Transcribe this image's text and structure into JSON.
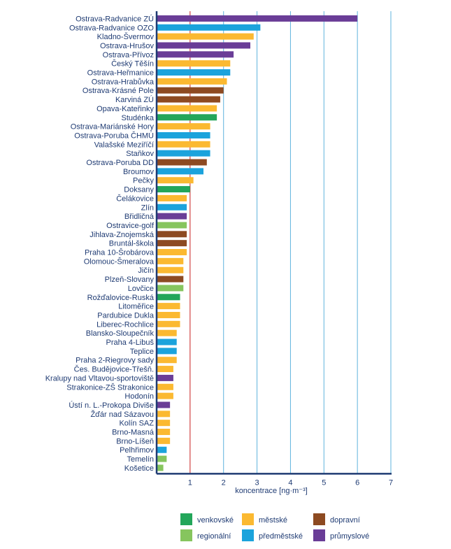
{
  "chart_data": {
    "type": "bar",
    "orientation": "horizontal",
    "xlabel": "koncentrace [ng·m⁻³]",
    "xlim": [
      0,
      7
    ],
    "xticks": [
      1,
      2,
      3,
      4,
      5,
      6,
      7
    ],
    "reference_line": 1,
    "grid": "vertical",
    "legend_position": "bottom",
    "categories": [
      "Ostrava-Radvanice ZÚ",
      "Ostrava-Radvanice OZO",
      "Kladno-Švermov",
      "Ostrava-Hrušov",
      "Ostrava-Přívoz",
      "Český Těšín",
      "Ostrava-Heřmanice",
      "Ostrava-Hrabůvka",
      "Ostrava-Krásné Pole",
      "Karviná ZÚ",
      "Opava-Kateřinky",
      "Studénka",
      "Ostrava-Mariánské Hory",
      "Ostrava-Poruba ČHMÚ",
      "Valašské Meziříčí",
      "Staňkov",
      "Ostrava-Poruba DD",
      "Broumov",
      "Pečky",
      "Doksany",
      "Čelákovice",
      "Zlín",
      "Břidličná",
      "Ostravice-golf",
      "Jihlava-Znojemská",
      "Bruntál-škola",
      "Praha 10-Šrobárova",
      "Olomouc-Šmeralova",
      "Jičín",
      "Plzeň-Slovany",
      "Lovčice",
      "Rožďalovice-Ruská",
      "Litoměřice",
      "Pardubice Dukla",
      "Liberec-Rochlice",
      "Blansko-Sloupečník",
      "Praha 4-Libuš",
      "Teplice",
      "Praha 2-Riegrovy sady",
      "Čes. Budějovice-Třešň.",
      "Kralupy nad Vltavou-sportoviště",
      "Strakonice-ZŠ Strakonice",
      "Hodonín",
      "Ústí n. L.-Prokopa Diviše",
      "Žďár nad Sázavou",
      "Kolín SAZ",
      "Brno-Masná",
      "Brno-Líšeň",
      "Pelhřimov",
      "Temelín",
      "Košetice"
    ],
    "values": [
      6.0,
      3.1,
      2.9,
      2.8,
      2.3,
      2.2,
      2.2,
      2.1,
      2.0,
      1.9,
      1.8,
      1.8,
      1.6,
      1.6,
      1.6,
      1.6,
      1.5,
      1.4,
      1.1,
      1.0,
      0.9,
      0.9,
      0.9,
      0.9,
      0.9,
      0.9,
      0.9,
      0.8,
      0.8,
      0.8,
      0.8,
      0.7,
      0.7,
      0.7,
      0.7,
      0.6,
      0.6,
      0.6,
      0.6,
      0.5,
      0.5,
      0.5,
      0.5,
      0.4,
      0.4,
      0.4,
      0.4,
      0.4,
      0.3,
      0.3,
      0.2
    ],
    "station_types": [
      "prumyslove",
      "predmestske",
      "mestske",
      "prumyslove",
      "prumyslove",
      "mestske",
      "predmestske",
      "mestske",
      "dopravni",
      "dopravni",
      "mestske",
      "venkovske",
      "mestske",
      "predmestske",
      "mestske",
      "predmestske",
      "dopravni",
      "predmestske",
      "mestske",
      "venkovske",
      "mestske",
      "predmestske",
      "prumyslove",
      "regionalni",
      "dopravni",
      "dopravni",
      "mestske",
      "mestske",
      "mestske",
      "dopravni",
      "regionalni",
      "venkovske",
      "mestske",
      "mestske",
      "mestske",
      "mestske",
      "predmestske",
      "predmestske",
      "mestske",
      "mestske",
      "prumyslove",
      "mestske",
      "mestske",
      "prumyslove",
      "mestske",
      "mestske",
      "mestske",
      "mestske",
      "predmestske",
      "regionalni",
      "regionalni"
    ],
    "legend": [
      {
        "key": "venkovske",
        "label": "venkovské",
        "color": "#23a65a"
      },
      {
        "key": "regionalni",
        "label": "regionální",
        "color": "#86c55e"
      },
      {
        "key": "mestske",
        "label": "městské",
        "color": "#fbb931"
      },
      {
        "key": "predmestske",
        "label": "předměstské",
        "color": "#1ba3dc"
      },
      {
        "key": "dopravni",
        "label": "dopravní",
        "color": "#8d4a21"
      },
      {
        "key": "prumyslove",
        "label": "průmyslové",
        "color": "#6a3d97"
      }
    ],
    "colors": {
      "axis": "#1f3b73",
      "grid": "#5fb3dd",
      "reference_line": "#c81e1e"
    }
  }
}
